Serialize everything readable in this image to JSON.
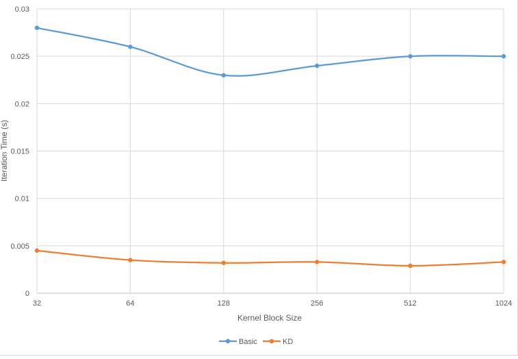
{
  "chart_data": {
    "type": "line",
    "title": "",
    "xlabel": "Kernel Block Size",
    "ylabel": "Iteration Time (s)",
    "categories": [
      "32",
      "64",
      "128",
      "256",
      "512",
      "1024"
    ],
    "ylim": [
      0,
      0.03
    ],
    "yticks": [
      "0",
      "0.005",
      "0.01",
      "0.015",
      "0.02",
      "0.025",
      "0.03"
    ],
    "ytick_values": [
      0,
      0.005,
      0.01,
      0.015,
      0.02,
      0.025,
      0.03
    ],
    "grid": true,
    "smoothed": true,
    "legend_position": "bottom",
    "series": [
      {
        "name": "Basic",
        "color": "#5b9bd5",
        "values": [
          0.028,
          0.026,
          0.023,
          0.024,
          0.025,
          0.025
        ]
      },
      {
        "name": "KD",
        "color": "#ed7d31",
        "values": [
          0.0045,
          0.0035,
          0.0032,
          0.0033,
          0.0029,
          0.0033
        ]
      }
    ]
  }
}
